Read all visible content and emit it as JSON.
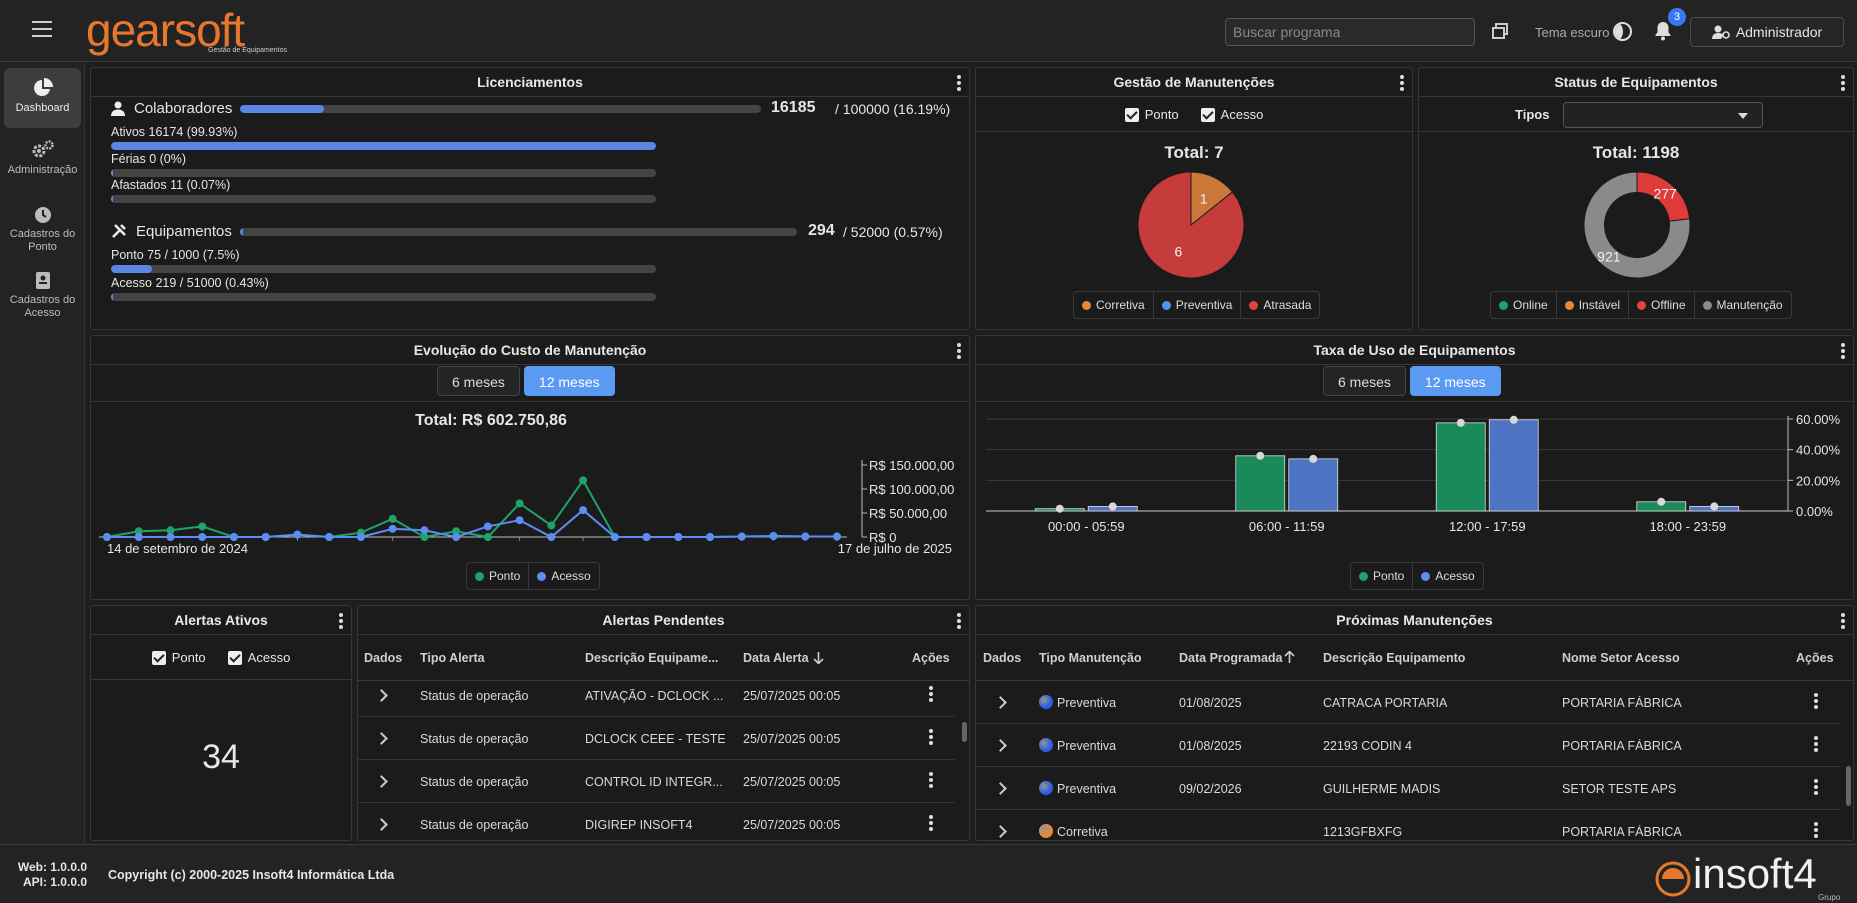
{
  "header": {
    "logo_text": "gearsoft",
    "logo_subtitle": "Gestão de Equipamentos",
    "search_placeholder": "Buscar programa",
    "theme_label": "Tema escuro",
    "notification_count": "3",
    "user_label": "Administrador"
  },
  "sidebar": {
    "items": [
      {
        "label": "Dashboard",
        "icon": "pie-chart-icon"
      },
      {
        "label": "Administração",
        "icon": "gears-icon"
      },
      {
        "label": "Cadastros do Ponto",
        "icon": "clock-icon"
      },
      {
        "label": "Cadastros do Acesso",
        "icon": "badge-icon"
      }
    ]
  },
  "licenciamentos": {
    "title": "Licenciamentos",
    "colaboradores": {
      "label": "Colaboradores",
      "value": "16185",
      "rest": "/ 100000 (16.19%)",
      "fraction": 0.1619,
      "items": [
        {
          "label": "Ativos 16174 (99.93%)",
          "fraction": 0.9993
        },
        {
          "label": "Férias 0 (0%)",
          "fraction": 0.0
        },
        {
          "label": "Afastados 11 (0.07%)",
          "fraction": 0.0007
        }
      ]
    },
    "equipamentos": {
      "label": "Equipamentos",
      "value": "294",
      "rest": "/ 52000 (0.57%)",
      "fraction": 0.0057,
      "items": [
        {
          "label": "Ponto 75 / 1000 (7.5%)",
          "fraction": 0.075
        },
        {
          "label": "Acesso 219 / 51000 (0.43%)",
          "fraction": 0.0043
        }
      ]
    }
  },
  "gestao": {
    "title": "Gestão de Manutenções",
    "check_ponto": "Ponto",
    "check_acesso": "Acesso",
    "total": "Total: 7",
    "slices": [
      {
        "label": "1",
        "value": 1,
        "color": "#c9783a"
      },
      {
        "label": "6",
        "value": 6,
        "color": "#c63b3b"
      }
    ],
    "legend": [
      {
        "label": "Corretiva",
        "color": "#e8893a"
      },
      {
        "label": "Preventiva",
        "color": "#5b8ef0"
      },
      {
        "label": "Atrasada",
        "color": "#e04545"
      }
    ]
  },
  "status": {
    "title": "Status de Equipamentos",
    "tipos_label": "Tipos",
    "total": "Total: 1198",
    "slices": [
      {
        "label": "277",
        "value": 277,
        "color": "#e03b3b"
      },
      {
        "label": "921",
        "value": 921,
        "color": "#8a8a8a"
      }
    ],
    "legend": [
      {
        "label": "Online",
        "color": "#1fa36b"
      },
      {
        "label": "Instável",
        "color": "#e8893a"
      },
      {
        "label": "Offline",
        "color": "#e04545"
      },
      {
        "label": "Manutenção",
        "color": "#8a8a8a"
      }
    ]
  },
  "custo": {
    "title": "Evolução do Custo de Manutenção",
    "btn_6": "6 meses",
    "btn_12": "12 meses",
    "total": "Total: R$ 602.750,86",
    "x_start": "14 de setembro de 2024",
    "x_end": "17 de julho de 2025",
    "y_ticks": [
      "R$ 150.000,00",
      "R$ 100.000,00",
      "R$ 50.000,00",
      "R$ 0"
    ],
    "legend": [
      {
        "label": "Ponto",
        "color": "#1fa36b"
      },
      {
        "label": "Acesso",
        "color": "#5b8ef0"
      }
    ]
  },
  "taxa": {
    "title": "Taxa de Uso de Equipamentos",
    "btn_6": "6 meses",
    "btn_12": "12 meses",
    "legend": [
      {
        "label": "Ponto",
        "color": "#1fa36b"
      },
      {
        "label": "Acesso",
        "color": "#5b8ef0"
      }
    ]
  },
  "chart_data": [
    {
      "type": "line",
      "title": "Total: R$ 602.750,86",
      "ylim": [
        0,
        150000
      ],
      "series": [
        {
          "name": "Ponto",
          "color": "#1fa36b",
          "values": [
            0,
            12000,
            14000,
            22000,
            0,
            0,
            5000,
            0,
            9000,
            38000,
            0,
            12000,
            0,
            70000,
            24000,
            118000,
            0,
            0,
            0,
            0,
            1000,
            2000,
            1000,
            1000
          ]
        },
        {
          "name": "Acesso",
          "color": "#5b8ef0",
          "values": [
            0,
            0,
            0,
            0,
            0,
            0,
            5000,
            0,
            0,
            17000,
            14000,
            0,
            22000,
            35000,
            0,
            56000,
            0,
            0,
            0,
            0,
            1000,
            2000,
            1000,
            1000
          ]
        }
      ]
    },
    {
      "type": "bar",
      "categories": [
        "00:00 - 05:59",
        "06:00 - 11:59",
        "12:00 - 17:59",
        "18:00 - 23:59"
      ],
      "y_ticks": [
        "60.00%",
        "40.00%",
        "20.00%",
        "0.00%"
      ],
      "ylim": [
        0,
        60
      ],
      "series": [
        {
          "name": "Ponto",
          "color": "#1b8a5a",
          "values": [
            1.5,
            36,
            57.5,
            6
          ]
        },
        {
          "name": "Acesso",
          "color": "#4d73c2",
          "values": [
            3,
            34,
            59.5,
            3
          ]
        }
      ]
    }
  ],
  "alertas_ativos": {
    "title": "Alertas Ativos",
    "check_ponto": "Ponto",
    "check_acesso": "Acesso",
    "count": "34"
  },
  "alertas_pendentes": {
    "title": "Alertas Pendentes",
    "columns": [
      "Dados",
      "Tipo Alerta",
      "Descrição Equipame...",
      "Data Alerta",
      "Ações"
    ],
    "rows": [
      {
        "tipo": "Status de operação",
        "desc": "ATIVAÇÃO - DCLOCK ...",
        "data": "25/07/2025 00:05"
      },
      {
        "tipo": "Status de operação",
        "desc": "DCLOCK CEEE - TESTE",
        "data": "25/07/2025 00:05"
      },
      {
        "tipo": "Status de operação",
        "desc": "CONTROL ID INTEGR...",
        "data": "25/07/2025 00:05"
      },
      {
        "tipo": "Status de operação",
        "desc": "DIGIREP INSOFT4",
        "data": "25/07/2025 00:05"
      }
    ]
  },
  "proximas": {
    "title": "Próximas Manutenções",
    "columns": [
      "Dados",
      "Tipo Manutenção",
      "Data Programada",
      "Descrição Equipamento",
      "Nome Setor Acesso",
      "Ações"
    ],
    "rows": [
      {
        "tipo": "Preventiva",
        "color": "#2f5fe0",
        "data": "01/08/2025",
        "desc": "CATRACA PORTARIA",
        "setor": "PORTARIA FÁBRICA"
      },
      {
        "tipo": "Preventiva",
        "color": "#2f5fe0",
        "data": "01/08/2025",
        "desc": "22193 CODIN 4",
        "setor": "PORTARIA FÁBRICA"
      },
      {
        "tipo": "Preventiva",
        "color": "#2f5fe0",
        "data": "09/02/2026",
        "desc": "GUILHERME MADIS",
        "setor": "SETOR TESTE APS"
      },
      {
        "tipo": "Corretiva",
        "color": "#e8893a",
        "data": "",
        "desc": "1213GFBXFG",
        "setor": "PORTARIA FÁBRICA"
      }
    ]
  },
  "footer": {
    "web_version": "Web: 1.0.0.0",
    "api_version": "API: 1.0.0.0",
    "copyright": "Copyright (c) 2000-2025 Insoft4 Informática Ltda",
    "brand": "insoft4",
    "brand_sub": "Grupo"
  }
}
